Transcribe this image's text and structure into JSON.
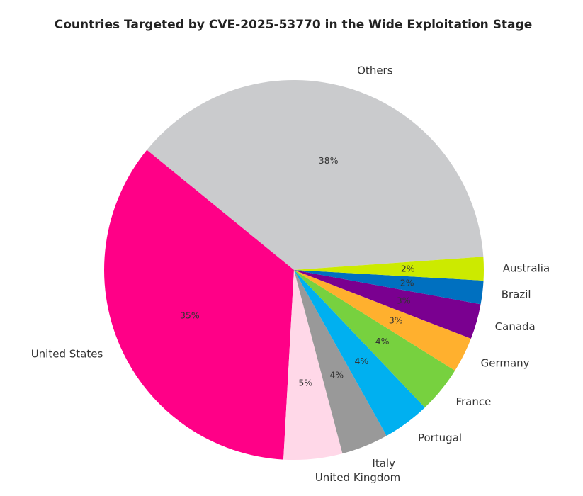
{
  "chart_data": {
    "type": "pie",
    "title": "Countries Targeted by CVE-2025-53770 in the Wide Exploitation Stage",
    "categories": [
      "Others",
      "United States",
      "United Kingdom",
      "Italy",
      "Portugal",
      "France",
      "Germany",
      "Canada",
      "Brazil",
      "Australia"
    ],
    "values": [
      38,
      35,
      5,
      4,
      4,
      4,
      3,
      3,
      2,
      2
    ],
    "value_labels": [
      "38%",
      "35%",
      "5%",
      "4%",
      "4%",
      "4%",
      "3%",
      "3%",
      "2%",
      "2%"
    ],
    "colors": [
      "#cacbcd",
      "#ff0087",
      "#ffd8e8",
      "#999999",
      "#00b0f0",
      "#77d13f",
      "#ffb02e",
      "#7a0090",
      "#0070c0",
      "#ccea00"
    ],
    "start_angle_deg": 4,
    "direction": "counterclockwise",
    "legend": "none"
  }
}
